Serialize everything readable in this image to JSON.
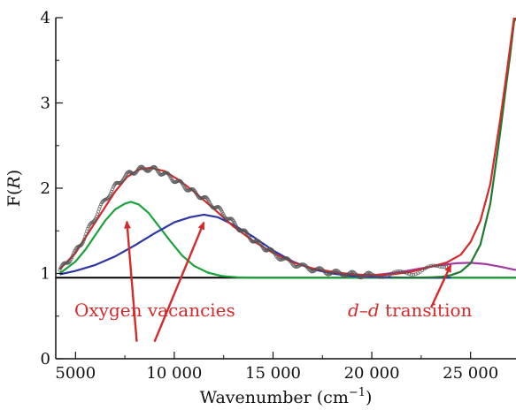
{
  "chart_data": {
    "type": "line",
    "title": "",
    "xlabel_main": "Wavenumber (cm",
    "xlabel_sup": "−1",
    "xlabel_close": ")",
    "ylabel_main": "F(",
    "ylabel_var": "R",
    "ylabel_close": ")",
    "xlim": [
      4000,
      27300
    ],
    "ylim": [
      0,
      4
    ],
    "xticks": [
      {
        "value": 5000,
        "label": "5000"
      },
      {
        "value": 10000,
        "label": "10 000"
      },
      {
        "value": 15000,
        "label": "15 000"
      },
      {
        "value": 20000,
        "label": "20 000"
      },
      {
        "value": 25000,
        "label": "25 000"
      }
    ],
    "yticks": [
      {
        "value": 0,
        "label": "0"
      },
      {
        "value": 1,
        "label": "1"
      },
      {
        "value": 2,
        "label": "2"
      },
      {
        "value": 3,
        "label": "3"
      },
      {
        "value": 4,
        "label": "4"
      }
    ],
    "series": [
      {
        "color": "#000000",
        "style": "line",
        "x": [
          4000,
          27300
        ],
        "y": [
          0.95,
          0.95
        ]
      },
      {
        "color": "#1aa33a",
        "style": "line",
        "x": [
          4200,
          5000,
          5500,
          6000,
          6500,
          7000,
          7500,
          7800,
          8200,
          8700,
          9200,
          9800,
          10400,
          11000,
          11700,
          12400,
          13200,
          14200,
          15000,
          27300
        ],
        "y": [
          1.0,
          1.14,
          1.28,
          1.45,
          1.62,
          1.75,
          1.82,
          1.84,
          1.81,
          1.71,
          1.56,
          1.38,
          1.21,
          1.09,
          1.01,
          0.97,
          0.955,
          0.95,
          0.95,
          0.95
        ]
      },
      {
        "color": "#2b35a5",
        "style": "line",
        "x": [
          4200,
          5000,
          6000,
          7000,
          8000,
          9000,
          10000,
          10800,
          11500,
          12200,
          13000,
          14000,
          15000,
          16000,
          17000,
          18000,
          19000,
          20000,
          21000,
          22000,
          23000,
          24000
        ],
        "y": [
          0.99,
          1.03,
          1.1,
          1.2,
          1.33,
          1.47,
          1.6,
          1.66,
          1.69,
          1.66,
          1.57,
          1.43,
          1.27,
          1.14,
          1.05,
          1.0,
          0.97,
          0.96,
          0.955,
          0.95,
          0.95,
          0.95
        ]
      },
      {
        "color": "#a23aa2",
        "style": "line",
        "x": [
          19500,
          20500,
          21500,
          22500,
          23500,
          24300,
          25000,
          25800,
          26500,
          27300
        ],
        "y": [
          0.97,
          0.99,
          1.02,
          1.06,
          1.1,
          1.12,
          1.125,
          1.11,
          1.08,
          1.04
        ]
      },
      {
        "color": "#1d7a2a",
        "style": "line",
        "x": [
          21000,
          22000,
          23000,
          23500,
          24000,
          24500,
          25000,
          25500,
          26000,
          26500,
          26800,
          27000,
          27200,
          27300
        ],
        "y": [
          0.95,
          0.95,
          0.955,
          0.96,
          0.98,
          1.02,
          1.12,
          1.34,
          1.82,
          2.65,
          3.2,
          3.55,
          3.95,
          4.0
        ]
      },
      {
        "color": "#d42a2a",
        "style": "line",
        "x": [
          4200,
          5000,
          6000,
          7000,
          7600,
          8200,
          8800,
          9500,
          10200,
          11000,
          12000,
          13000,
          14000,
          15000,
          16000,
          17000,
          18000,
          19000,
          20000,
          21000,
          22000,
          23000,
          23800,
          24500,
          25000,
          25500,
          26000,
          26500,
          26800,
          27000,
          27200,
          27300
        ],
        "y": [
          1.05,
          1.24,
          1.6,
          1.96,
          2.13,
          2.22,
          2.24,
          2.2,
          2.1,
          1.96,
          1.76,
          1.55,
          1.38,
          1.24,
          1.13,
          1.06,
          1.02,
          0.99,
          0.98,
          0.99,
          1.02,
          1.08,
          1.13,
          1.22,
          1.37,
          1.62,
          2.05,
          2.8,
          3.3,
          3.65,
          4.0,
          4.0
        ]
      },
      {
        "color": "#555555",
        "style": "scatter",
        "jitter": 0.03,
        "x": [
          4200,
          4600,
          5000,
          5400,
          5800,
          6200,
          6600,
          7000,
          7400,
          7800,
          8200,
          8600,
          9000,
          9400,
          9800,
          10200,
          10600,
          11000,
          11400,
          11800,
          12200,
          12600,
          13000,
          13400,
          13800,
          14200,
          14600,
          15000,
          15500,
          16000,
          16500,
          17000,
          17500,
          18000,
          18500,
          19000,
          19500,
          20000,
          21000,
          22000,
          23000,
          24000
        ],
        "y": [
          1.04,
          1.14,
          1.25,
          1.4,
          1.58,
          1.75,
          1.9,
          2.02,
          2.12,
          2.18,
          2.22,
          2.23,
          2.22,
          2.18,
          2.13,
          2.07,
          2.01,
          1.95,
          1.9,
          1.83,
          1.76,
          1.68,
          1.59,
          1.51,
          1.43,
          1.36,
          1.3,
          1.24,
          1.17,
          1.12,
          1.08,
          1.05,
          1.03,
          1.01,
          1.0,
          0.99,
          0.98,
          0.98,
          0.99,
          1.01,
          1.06,
          1.12
        ]
      }
    ],
    "annotations": [
      {
        "text": "Oxygen vacancies",
        "color": "#d42a2a"
      },
      {
        "text_var1": "d",
        "text_dash": "–",
        "text_var2": "d",
        "text_rest": " transition",
        "color": "#d42a2a"
      }
    ],
    "arrows": [
      {
        "from": [
          8100,
          0.2
        ],
        "to": [
          7600,
          1.61
        ]
      },
      {
        "from": [
          9000,
          0.2
        ],
        "to": [
          11500,
          1.6
        ]
      },
      {
        "from": [
          23000,
          0.6
        ],
        "to": [
          24000,
          1.1
        ]
      }
    ]
  }
}
